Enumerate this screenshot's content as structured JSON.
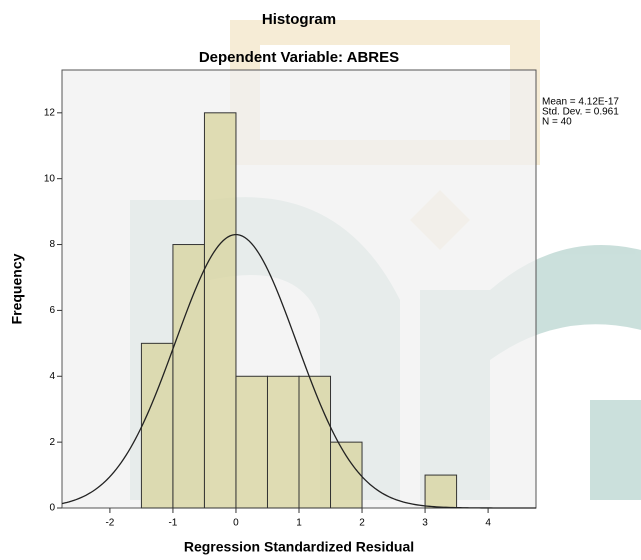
{
  "chart_data": {
    "type": "histogram",
    "title": "Histogram",
    "subtitle": "Dependent Variable: ABRES",
    "x_label": "Regression Standardized Residual",
    "y_label": "Frequency",
    "bins": [
      -1.5,
      -1,
      -0.5,
      0,
      0.5,
      1,
      1.5,
      2,
      2.5,
      3,
      3.5
    ],
    "counts": [
      5,
      8,
      12,
      4,
      4,
      4,
      2,
      0,
      0,
      1
    ],
    "color": "#d9d6a3",
    "xlim": [
      -2.76,
      4.76
    ],
    "xticks": [
      -2,
      -1,
      0,
      1,
      2,
      3,
      4
    ],
    "ylim": [
      0,
      13.3
    ],
    "yticks": [
      0,
      2,
      4,
      6,
      8,
      10,
      12
    ],
    "stats": [
      {
        "value": 4.12e-17,
        "label": "Mean = 4.12E-17"
      },
      {
        "value": 0.961,
        "label": "Std. Dev. = 0.961"
      },
      {
        "value": 40,
        "label": "N = 40"
      }
    ]
  }
}
